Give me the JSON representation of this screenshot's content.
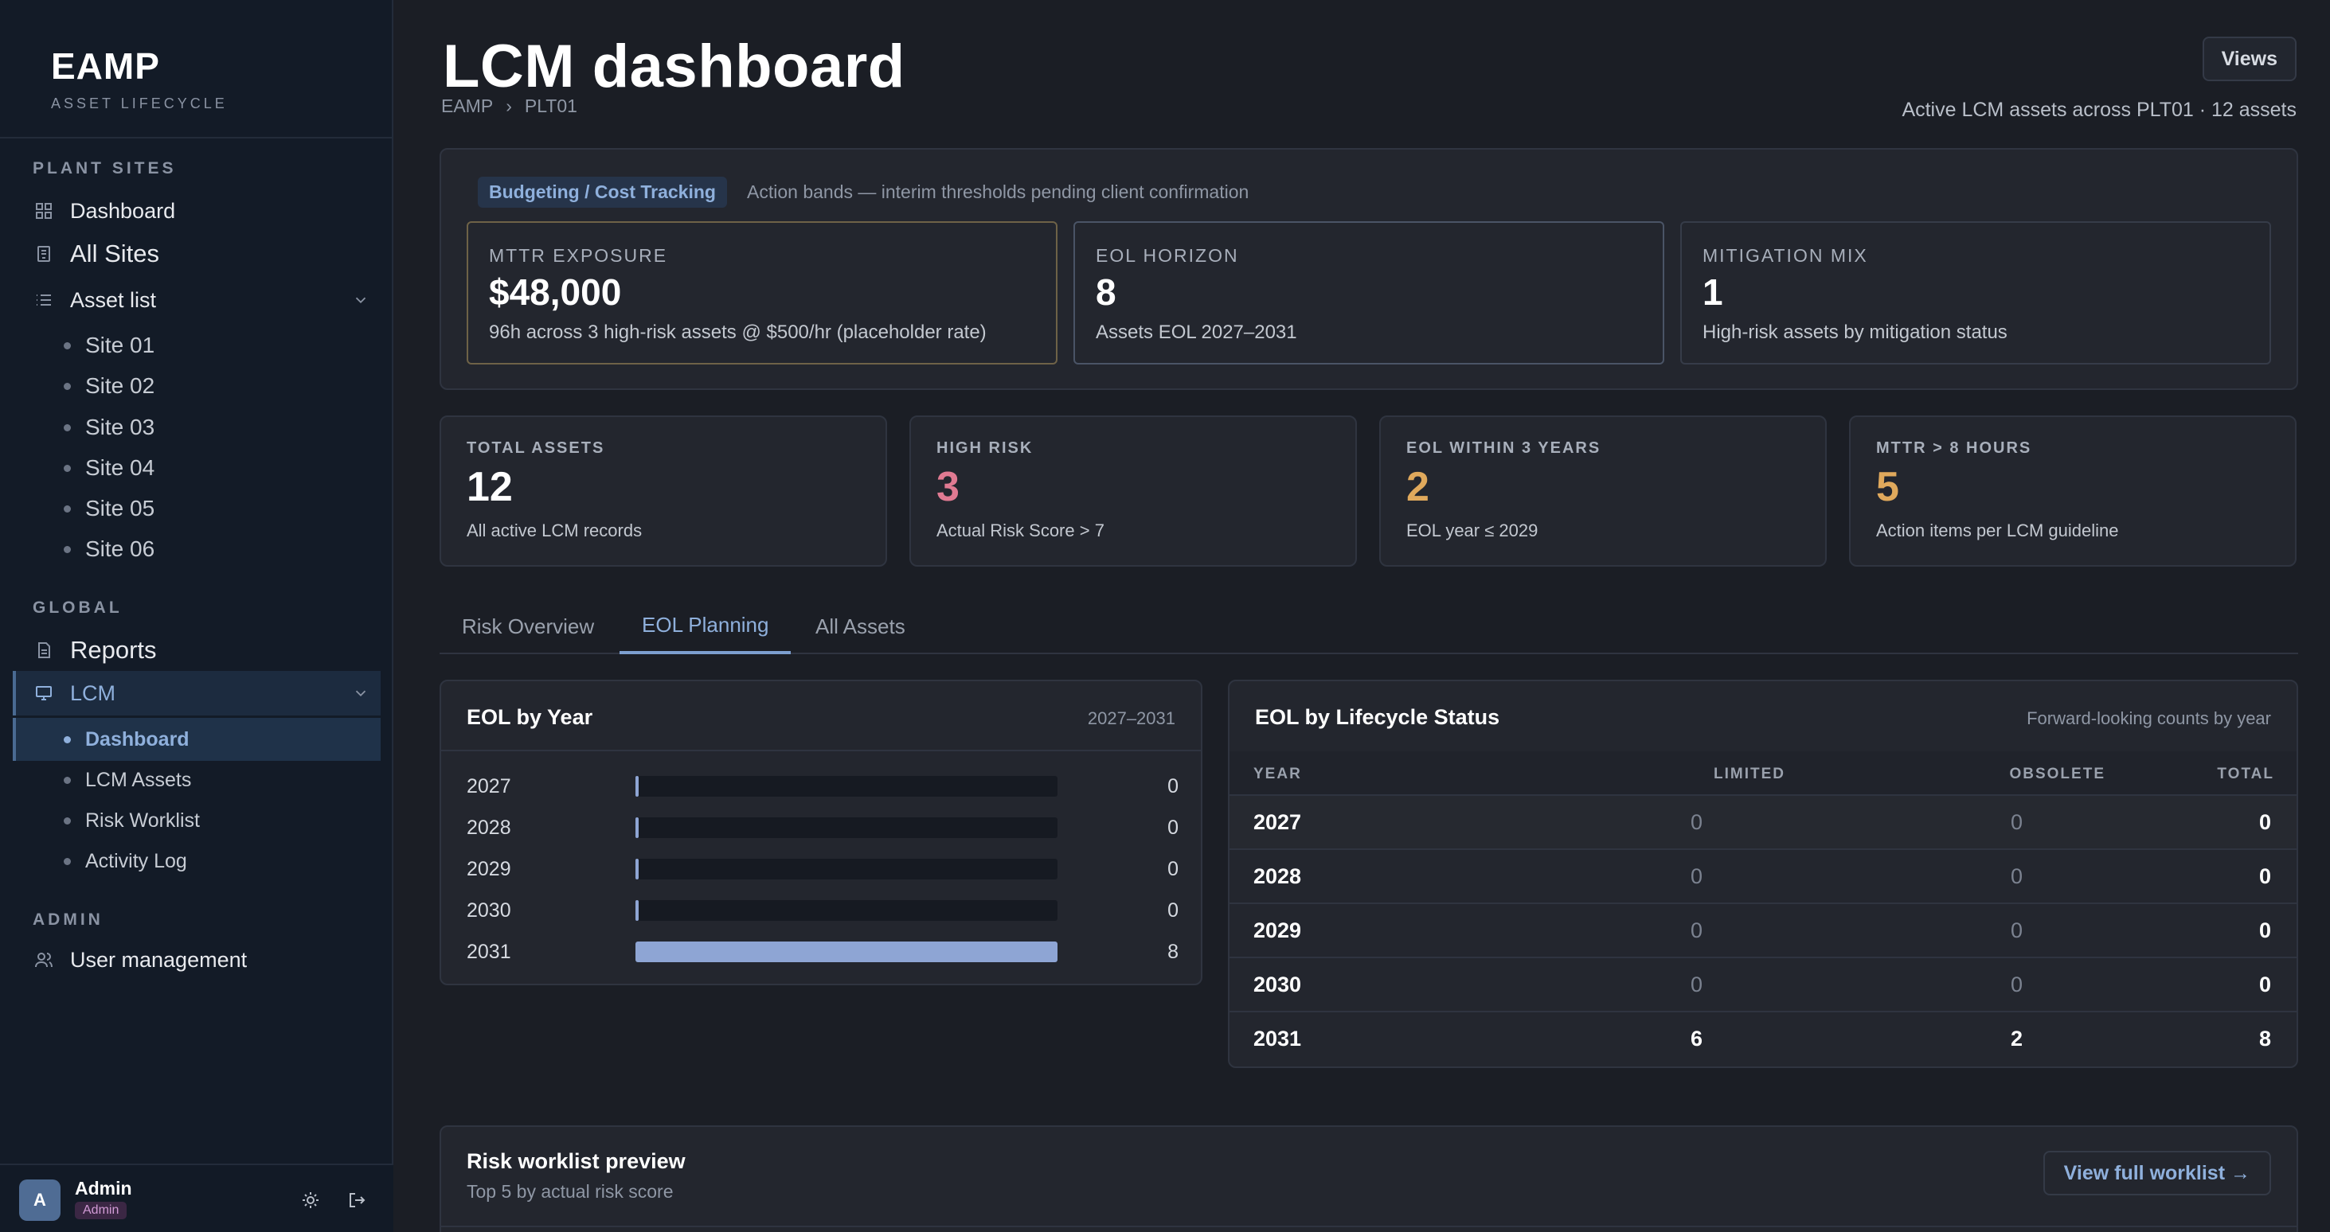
{
  "app": {
    "name": "EAMP",
    "subtitle": "ASSET LIFECYCLE"
  },
  "sidebar": {
    "sections": {
      "plant_sites": "PLANT SITES",
      "global": "GLOBAL",
      "admin": "ADMIN"
    },
    "dashboard": "Dashboard",
    "all_sites": "All Sites",
    "asset_list": "Asset list",
    "sites": [
      "Site 01",
      "Site 02",
      "Site 03",
      "Site 04",
      "Site 05",
      "Site 06"
    ],
    "reports": "Reports",
    "lcm": "LCM",
    "lcm_items": [
      "Dashboard",
      "LCM Assets",
      "Risk Worklist",
      "Activity Log"
    ],
    "user_management": "User management"
  },
  "user": {
    "initial": "A",
    "name": "Admin",
    "role": "Admin"
  },
  "header": {
    "title": "LCM dashboard",
    "breadcrumb": [
      "EAMP",
      "›",
      "PLT01"
    ],
    "views_label": "Views",
    "subtitle": "Active LCM assets across PLT01 · 12 assets"
  },
  "budget": {
    "tag": "Budgeting / Cost Tracking",
    "note": "Action bands — interim thresholds pending client confirmation",
    "cards": [
      {
        "label": "MTTR EXPOSURE",
        "value": "$48,000",
        "desc": "96h across 3 high-risk assets @ $500/hr (placeholder rate)",
        "border": "#6e6247"
      },
      {
        "label": "EOL HORIZON",
        "value": "8",
        "desc": "Assets EOL 2027–2031",
        "border": "#4a5466"
      },
      {
        "label": "MITIGATION MIX",
        "value": "1",
        "desc": "High-risk assets by mitigation status",
        "border": "#363c49"
      }
    ]
  },
  "kpis": [
    {
      "label": "TOTAL ASSETS",
      "value": "12",
      "desc": "All active LCM records",
      "color": "#ffffff"
    },
    {
      "label": "HIGH RISK",
      "value": "3",
      "desc": "Actual Risk Score > 7",
      "color": "#e07a92"
    },
    {
      "label": "EOL WITHIN 3 YEARS",
      "value": "2",
      "desc": "EOL year ≤ 2029",
      "color": "#e0a95c"
    },
    {
      "label": "MTTR > 8 HOURS",
      "value": "5",
      "desc": "Action items per LCM guideline",
      "color": "#e0a95c"
    }
  ],
  "tabs": [
    "Risk Overview",
    "EOL Planning",
    "All Assets"
  ],
  "eol_by_year": {
    "title": "EOL by Year",
    "range": "2027–2031",
    "rows": [
      {
        "year": "2027",
        "count": 0
      },
      {
        "year": "2028",
        "count": 0
      },
      {
        "year": "2029",
        "count": 0
      },
      {
        "year": "2030",
        "count": 0
      },
      {
        "year": "2031",
        "count": 8
      }
    ],
    "max": 8
  },
  "eol_by_status": {
    "title": "EOL by Lifecycle Status",
    "note": "Forward-looking counts by year",
    "columns": [
      "YEAR",
      "LIMITED",
      "OBSOLETE",
      "TOTAL"
    ],
    "rows": [
      {
        "year": "2027",
        "limited": "0",
        "obsolete": "0",
        "total": "0"
      },
      {
        "year": "2028",
        "limited": "0",
        "obsolete": "0",
        "total": "0"
      },
      {
        "year": "2029",
        "limited": "0",
        "obsolete": "0",
        "total": "0"
      },
      {
        "year": "2030",
        "limited": "0",
        "obsolete": "0",
        "total": "0"
      },
      {
        "year": "2031",
        "limited": "6",
        "obsolete": "2",
        "total": "8"
      }
    ]
  },
  "worklist": {
    "title": "Risk worklist preview",
    "subtitle": "Top 5 by actual risk score",
    "button": "View full worklist →"
  }
}
